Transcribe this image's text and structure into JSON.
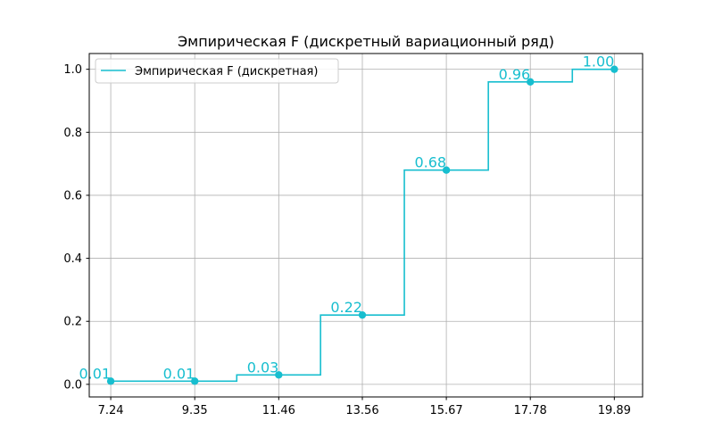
{
  "chart_data": {
    "type": "line",
    "step": "post",
    "title": "Эмпирическая F (дискретный вариационный ряд)",
    "xlabel": "",
    "ylabel": "",
    "color": "#17becf",
    "x": [
      7.24,
      9.35,
      11.46,
      13.56,
      15.67,
      17.78,
      19.89
    ],
    "x_tick_labels": [
      "7.24",
      "9.35",
      "11.46",
      "13.56",
      "15.67",
      "17.78",
      "19.89"
    ],
    "series": [
      {
        "name": "Эмпирическая F (дискретная)",
        "values": [
          0.01,
          0.01,
          0.03,
          0.22,
          0.68,
          0.96,
          1.0
        ],
        "point_labels": [
          "0.01",
          "0.01",
          "0.03",
          "0.22",
          "0.68",
          "0.96",
          "1.00"
        ]
      }
    ],
    "y_ticks": [
      0.0,
      0.2,
      0.4,
      0.6,
      0.8,
      1.0
    ],
    "y_tick_labels": [
      "0.0",
      "0.2",
      "0.4",
      "0.6",
      "0.8",
      "1.0"
    ],
    "xlim": [
      6.7,
      20.6
    ],
    "ylim": [
      -0.04,
      1.05
    ],
    "grid": true,
    "legend_position": "top-left"
  }
}
